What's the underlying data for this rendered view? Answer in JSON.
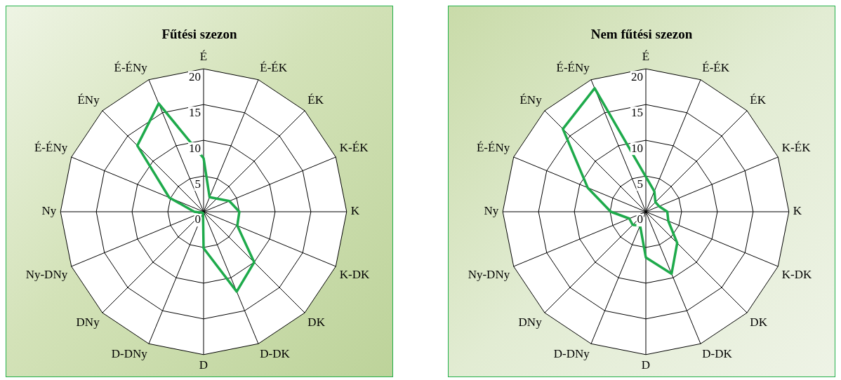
{
  "chart_data": [
    {
      "type": "radar",
      "title": "Fűtési szezon",
      "categories": [
        "É",
        "É-ÉK",
        "ÉK",
        "K-ÉK",
        "K",
        "K-DK",
        "DK",
        "D-DK",
        "D",
        "D-DNy",
        "DNy",
        "Ny-DNy",
        "Ny",
        "É-ÉNy",
        "ÉNy",
        "É-ÉNy"
      ],
      "series": [
        {
          "color": "#1eaa4b",
          "values": [
            7.5,
            2.2,
            2.6,
            3.9,
            5.0,
            5.1,
            10.0,
            12.1,
            5.1,
            0.2,
            0.2,
            0.3,
            1.3,
            5.2,
            13.1,
            16.4
          ]
        }
      ],
      "ylim": [
        0,
        20
      ],
      "yticks": [
        0,
        5,
        10,
        15,
        20
      ],
      "grid": true
    },
    {
      "type": "radar",
      "title": "Nem fűtési szezon",
      "categories": [
        "É",
        "É-ÉK",
        "ÉK",
        "K-ÉK",
        "K",
        "K-DK",
        "DK",
        "D-DK",
        "D",
        "D-DNy",
        "DNy",
        "Ny-DNy",
        "Ny",
        "É-ÉNy",
        "ÉNy",
        "É-ÉNy"
      ],
      "series": [
        {
          "color": "#1eaa4b",
          "values": [
            4.9,
            3.1,
            1.9,
            2.0,
            3.0,
            3.4,
            6.2,
            9.4,
            6.4,
            2.1,
            2.6,
            2.5,
            4.9,
            8.8,
            16.4,
            18.7
          ]
        }
      ],
      "ylim": [
        0,
        20
      ],
      "yticks": [
        0,
        5,
        10,
        15,
        20
      ],
      "grid": true
    }
  ]
}
